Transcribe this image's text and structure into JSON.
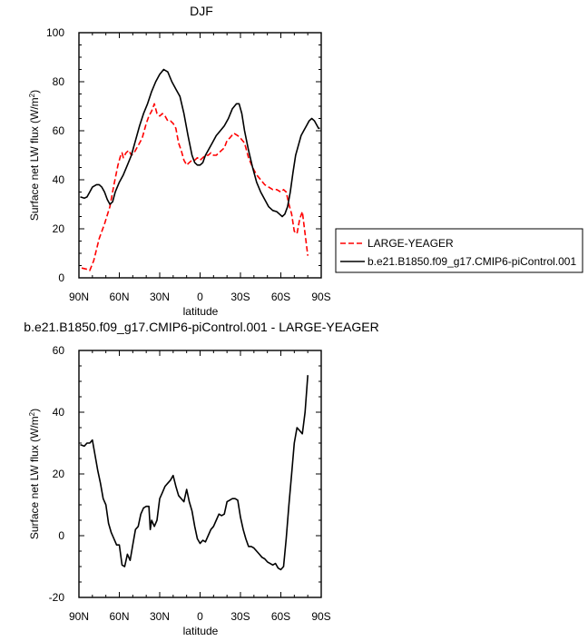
{
  "chart_data": [
    {
      "type": "line",
      "title": "DJF",
      "xlabel": "latitude",
      "ylabel": "Surface net LW flux (W/m",
      "ylabel_sup": "2",
      "ylabel_close": ")",
      "xlim": [
        90,
        -90
      ],
      "ylim": [
        0,
        100
      ],
      "xticks": [
        {
          "value": 90,
          "label": "90N"
        },
        {
          "value": 60,
          "label": "60N"
        },
        {
          "value": 30,
          "label": "30N"
        },
        {
          "value": 0,
          "label": "0"
        },
        {
          "value": -30,
          "label": "30S"
        },
        {
          "value": -60,
          "label": "60S"
        },
        {
          "value": -90,
          "label": "90S"
        }
      ],
      "yticks": [
        0,
        20,
        40,
        60,
        80,
        100
      ],
      "legend_position": "right",
      "series": [
        {
          "name": "LARGE-YEAGER",
          "color": "#ff0000",
          "dash": "dashed",
          "x": [
            88,
            84,
            82,
            79,
            75,
            71,
            67,
            64,
            61,
            59,
            58,
            57,
            55,
            53,
            51,
            49,
            47,
            45,
            43,
            40,
            38,
            36,
            34,
            32,
            30,
            28,
            26,
            24,
            22,
            20,
            18,
            16,
            14,
            12,
            10,
            8,
            6,
            4,
            2,
            0,
            -2,
            -4,
            -6,
            -8,
            -10,
            -12,
            -14,
            -16,
            -18,
            -20,
            -22,
            -25,
            -28,
            -30,
            -33,
            -36,
            -39,
            -42,
            -45,
            -48,
            -51,
            -54,
            -57,
            -60,
            -62,
            -64,
            -66,
            -68,
            -70,
            -72,
            -74,
            -76,
            -78,
            -80
          ],
          "y": [
            4,
            3.5,
            3,
            7,
            16,
            22,
            29,
            38,
            46,
            50,
            51,
            49,
            51,
            52,
            50,
            51,
            53,
            55,
            57,
            63,
            66,
            68,
            71,
            67,
            66,
            67,
            66,
            64,
            64,
            63,
            61,
            55,
            52,
            48,
            46,
            47,
            48,
            48,
            49,
            48,
            49,
            50,
            50,
            51,
            50,
            50,
            51,
            52,
            53,
            56,
            57,
            59,
            58,
            57,
            55,
            49,
            45,
            42,
            40,
            38,
            37,
            36,
            36,
            35,
            36,
            35,
            30,
            26,
            19,
            18,
            24,
            27,
            18,
            9
          ]
        },
        {
          "name": "b.e21.B1850.f09_g17.CMIP6-piControl.001",
          "color": "#000000",
          "dash": "solid",
          "x": [
            89,
            86,
            84,
            82,
            80,
            77,
            75,
            73,
            71,
            69,
            67,
            65,
            63,
            60,
            57,
            54,
            51,
            48,
            45,
            42,
            39,
            36,
            33,
            30,
            27,
            24,
            21,
            18,
            15,
            12,
            9,
            6,
            4,
            2,
            0,
            -2,
            -4,
            -6,
            -9,
            -12,
            -15,
            -18,
            -21,
            -24,
            -27,
            -29,
            -31,
            -33,
            -36,
            -39,
            -42,
            -45,
            -48,
            -51,
            -54,
            -57,
            -59,
            -61,
            -63,
            -65,
            -67,
            -69,
            -71,
            -73,
            -75,
            -77,
            -79,
            -81,
            -83,
            -85,
            -88,
            -89
          ],
          "y": [
            33,
            32.5,
            33,
            35,
            37,
            38,
            38,
            37,
            35,
            32,
            30,
            31,
            35,
            39,
            42,
            46,
            50,
            56,
            62,
            67,
            71,
            76,
            80,
            83,
            85,
            84,
            80,
            77,
            74,
            67,
            58,
            50,
            47,
            46,
            46,
            47,
            50,
            52,
            55,
            58,
            60,
            62,
            65,
            69,
            71,
            71,
            67,
            60,
            52,
            45,
            39,
            35,
            32,
            29,
            27.5,
            27,
            26,
            25,
            26,
            29,
            35,
            43,
            50,
            54,
            58,
            60,
            62,
            64,
            65,
            64,
            61,
            61
          ]
        }
      ]
    },
    {
      "type": "line",
      "title": "b.e21.B1850.f09_g17.CMIP6-piControl.001 - LARGE-YEAGER",
      "xlabel": "latitude",
      "ylabel": "Surface net LW flux (W/m",
      "ylabel_sup": "2",
      "ylabel_close": ")",
      "xlim": [
        90,
        -90
      ],
      "ylim": [
        -20,
        60
      ],
      "xticks": [
        {
          "value": 90,
          "label": "90N"
        },
        {
          "value": 60,
          "label": "60N"
        },
        {
          "value": 30,
          "label": "30N"
        },
        {
          "value": 0,
          "label": "0"
        },
        {
          "value": -30,
          "label": "30S"
        },
        {
          "value": -60,
          "label": "60S"
        },
        {
          "value": -90,
          "label": "90S"
        }
      ],
      "yticks": [
        -20,
        0,
        20,
        40,
        60
      ],
      "series": [
        {
          "name": "",
          "color": "#000000",
          "dash": "solid",
          "x": [
            89,
            86,
            84,
            82,
            80,
            78,
            76,
            74,
            72,
            70,
            68,
            66,
            64,
            62,
            60,
            58,
            56,
            54,
            52,
            50,
            48,
            46,
            44,
            42,
            40,
            38,
            37,
            36,
            34,
            32,
            30,
            28,
            26,
            24,
            22,
            20,
            18,
            16,
            14,
            12,
            10,
            8,
            6,
            4,
            2,
            0,
            -2,
            -4,
            -6,
            -8,
            -10,
            -12,
            -14,
            -16,
            -18,
            -20,
            -22,
            -24,
            -26,
            -28,
            -30,
            -32,
            -34,
            -36,
            -38,
            -40,
            -42,
            -44,
            -46,
            -48,
            -50,
            -52,
            -54,
            -56,
            -58,
            -60,
            -62,
            -64,
            -66,
            -68,
            -70,
            -72,
            -74,
            -76,
            -78,
            -80
          ],
          "y": [
            29.5,
            29,
            30,
            30,
            31,
            26,
            21,
            17,
            12,
            10,
            4,
            1,
            -1,
            -3,
            -3,
            -9.5,
            -10,
            -6,
            -8,
            -3,
            2,
            3,
            7,
            9,
            9.5,
            9.5,
            2,
            5,
            3,
            5,
            12,
            14,
            16,
            17,
            18,
            19.5,
            16,
            13,
            12,
            11,
            15,
            11,
            8,
            3,
            -1,
            -2.5,
            -1.5,
            -2,
            0,
            2,
            3,
            5,
            7,
            6.5,
            7,
            11,
            11.5,
            12,
            12,
            11.5,
            6,
            2,
            -1,
            -3.5,
            -3.5,
            -4,
            -5,
            -6,
            -7,
            -7.5,
            -8.5,
            -9,
            -9.5,
            -9,
            -10.5,
            -11,
            -10,
            -1,
            10,
            20,
            30,
            35,
            34,
            33,
            40,
            52
          ]
        }
      ]
    }
  ]
}
